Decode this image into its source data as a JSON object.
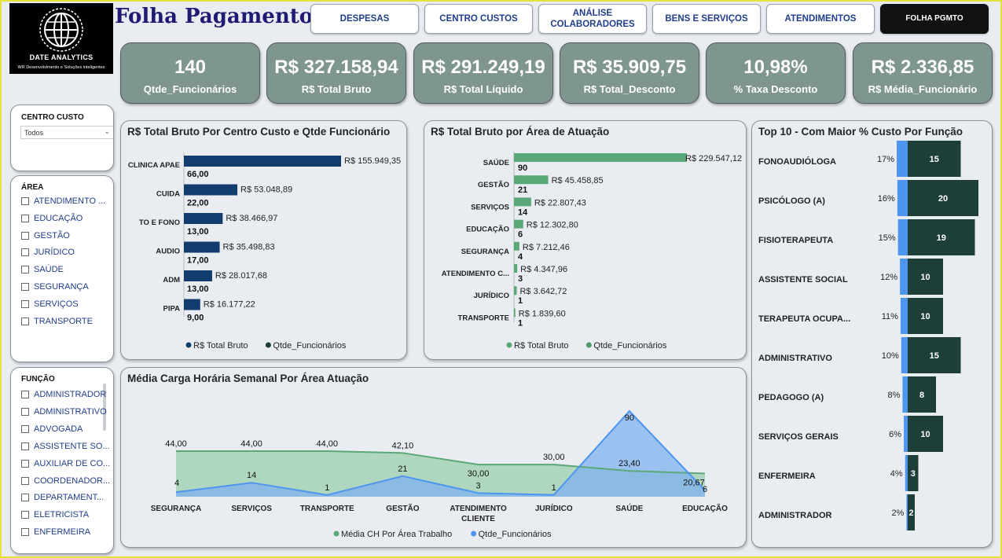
{
  "logo": {
    "name": "DATE ANALYTICS",
    "tagline": "WR Desenvolvimento e Soluções inteligentes"
  },
  "title": "Folha Pagamento",
  "tabs": [
    {
      "label": "DESPESAS"
    },
    {
      "label": "CENTRO CUSTOS"
    },
    {
      "label": "ANÁLISE COLABORADORES"
    },
    {
      "label": "BENS E SERVIÇOS"
    },
    {
      "label": "ATENDIMENTOS"
    },
    {
      "label": "FOLHA PGMTO"
    }
  ],
  "kpis": [
    {
      "value": "140",
      "label": "Qtde_Funcionários"
    },
    {
      "value": "R$ 327.158,94",
      "label": "R$ Total Bruto"
    },
    {
      "value": "R$ 291.249,19",
      "label": "R$ Total Líquido"
    },
    {
      "value": "R$ 35.909,75",
      "label": "R$ Total_Desconto"
    },
    {
      "value": "10,98%",
      "label": "% Taxa Desconto"
    },
    {
      "value": "R$ 2.336,85",
      "label": "R$ Média_Funcionário"
    }
  ],
  "filters": {
    "centro_custo": {
      "title": "CENTRO CUSTO",
      "selected": "Todos"
    },
    "area": {
      "title": "ÁREA",
      "options": [
        "ATENDIMENTO ...",
        "EDUCAÇÃO",
        "GESTÃO",
        "JURÍDICO",
        "SAÚDE",
        "SEGURANÇA",
        "SERVIÇOS",
        "TRANSPORTE"
      ]
    },
    "funcao": {
      "title": "FUNÇÃO",
      "options": [
        "ADMINISTRADOR",
        "ADMINISTRATIVO",
        "ADVOGADA",
        "ASSISTENTE SO...",
        "AUXILIAR DE CO...",
        "COORDENADOR...",
        "DEPARTAMENT...",
        "ELETRICISTA",
        "ENFERMEIRA"
      ]
    }
  },
  "colors": {
    "navy": "#123b6e",
    "green": "#5aa878",
    "darkgreen": "#1d3f38",
    "blue": "#4e95f0",
    "kpi": "#7f9590"
  },
  "chart_data": [
    {
      "id": "bruto_centro",
      "type": "bar",
      "title": "R$ Total Bruto Por Centro Custo e Qtde Funcionário",
      "categories": [
        "CLINICA APAE",
        "CUIDA",
        "TO E FONO",
        "AUDIO",
        "ADM",
        "PIPA"
      ],
      "series": [
        {
          "name": "R$ Total Bruto",
          "values": [
            155949.35,
            53048.89,
            38466.97,
            35498.83,
            28017.68,
            16177.22
          ],
          "labels": [
            "R$ 155.949,35",
            "R$ 53.048,89",
            "R$ 38.466,97",
            "R$ 35.498,83",
            "R$ 28.017,68",
            "R$ 16.177,22"
          ]
        },
        {
          "name": "Qtde_Funcionários",
          "values": [
            66,
            22,
            13,
            17,
            13,
            9
          ],
          "labels": [
            "66,00",
            "22,00",
            "13,00",
            "17,00",
            "13,00",
            "9,00"
          ]
        }
      ],
      "legend": "bottom"
    },
    {
      "id": "bruto_area",
      "type": "bar",
      "title": "R$ Total Bruto por Área de Atuação",
      "categories": [
        "SAÚDE",
        "GESTÃO",
        "SERVIÇOS",
        "EDUCAÇÃO",
        "SEGURANÇA",
        "ATENDIMENTO C...",
        "JURÍDICO",
        "TRANSPORTE"
      ],
      "series": [
        {
          "name": "R$ Total Bruto",
          "values": [
            229547.12,
            45458.85,
            22807.43,
            12302.8,
            7212.46,
            4347.96,
            3642.72,
            1839.6
          ],
          "labels": [
            "R$ 229.547,12",
            "R$ 45.458,85",
            "R$ 22.807,43",
            "R$ 12.302,80",
            "R$ 7.212,46",
            "R$ 4.347,96",
            "R$ 3.642,72",
            "R$ 1.839,60"
          ]
        },
        {
          "name": "Qtde_Funcionários",
          "values": [
            90,
            21,
            14,
            6,
            4,
            3,
            1,
            1
          ],
          "labels": [
            "90",
            "21",
            "14",
            "6",
            "4",
            "3",
            "1",
            "1"
          ]
        }
      ],
      "legend": "bottom"
    },
    {
      "id": "top10_funcao",
      "type": "bar",
      "title": "Top 10 - Com Maior % Custo Por Função",
      "categories": [
        "FONOAUDIÓLOGA",
        "PSICÓLOGO (A)",
        "FISIOTERAPEUTA",
        "ASSISTENTE SOCIAL",
        "TERAPEUTA OCUPA...",
        "ADMINISTRATIVO",
        "PEDAGOGO (A)",
        "SERVIÇOS GERAIS",
        "ENFERMEIRA",
        "ADMINISTRADOR"
      ],
      "series": [
        {
          "name": "% Custo",
          "values": [
            17,
            16,
            15,
            12,
            11,
            10,
            8,
            6,
            4,
            2
          ],
          "labels": [
            "17%",
            "16%",
            "15%",
            "12%",
            "11%",
            "10%",
            "8%",
            "6%",
            "4%",
            "2%"
          ]
        },
        {
          "name": "Qtde_Funcionários",
          "values": [
            15,
            20,
            19,
            10,
            10,
            15,
            8,
            10,
            3,
            2
          ],
          "labels": [
            "15",
            "20",
            "19",
            "10",
            "10",
            "15",
            "8",
            "10",
            "3",
            "2"
          ]
        }
      ]
    },
    {
      "id": "carga_horaria",
      "type": "area",
      "title": "Média Carga Horária Semanal Por Área Atuação",
      "categories": [
        "SEGURANÇA",
        "SERVIÇOS",
        "TRANSPORTE",
        "GESTÃO",
        "ATENDIMENTO CLIENTE",
        "JURÍDICO",
        "SAÚDE",
        "EDUCAÇÃO"
      ],
      "series": [
        {
          "name": "Média CH Por Área Trabalho",
          "values": [
            44,
            44,
            44,
            42.1,
            30,
            30,
            23.4,
            20.67
          ],
          "labels": [
            "44,00",
            "44,00",
            "44,00",
            "42,10",
            "30,00",
            "30,00",
            "23,40",
            "20,67"
          ]
        },
        {
          "name": "Qtde_Funcionários",
          "values": [
            4,
            14,
            1,
            21,
            3,
            1,
            90,
            6
          ],
          "labels": [
            "4",
            "14",
            "1",
            "21",
            "3",
            "1",
            "90",
            "6"
          ]
        }
      ],
      "legend": "bottom"
    }
  ]
}
